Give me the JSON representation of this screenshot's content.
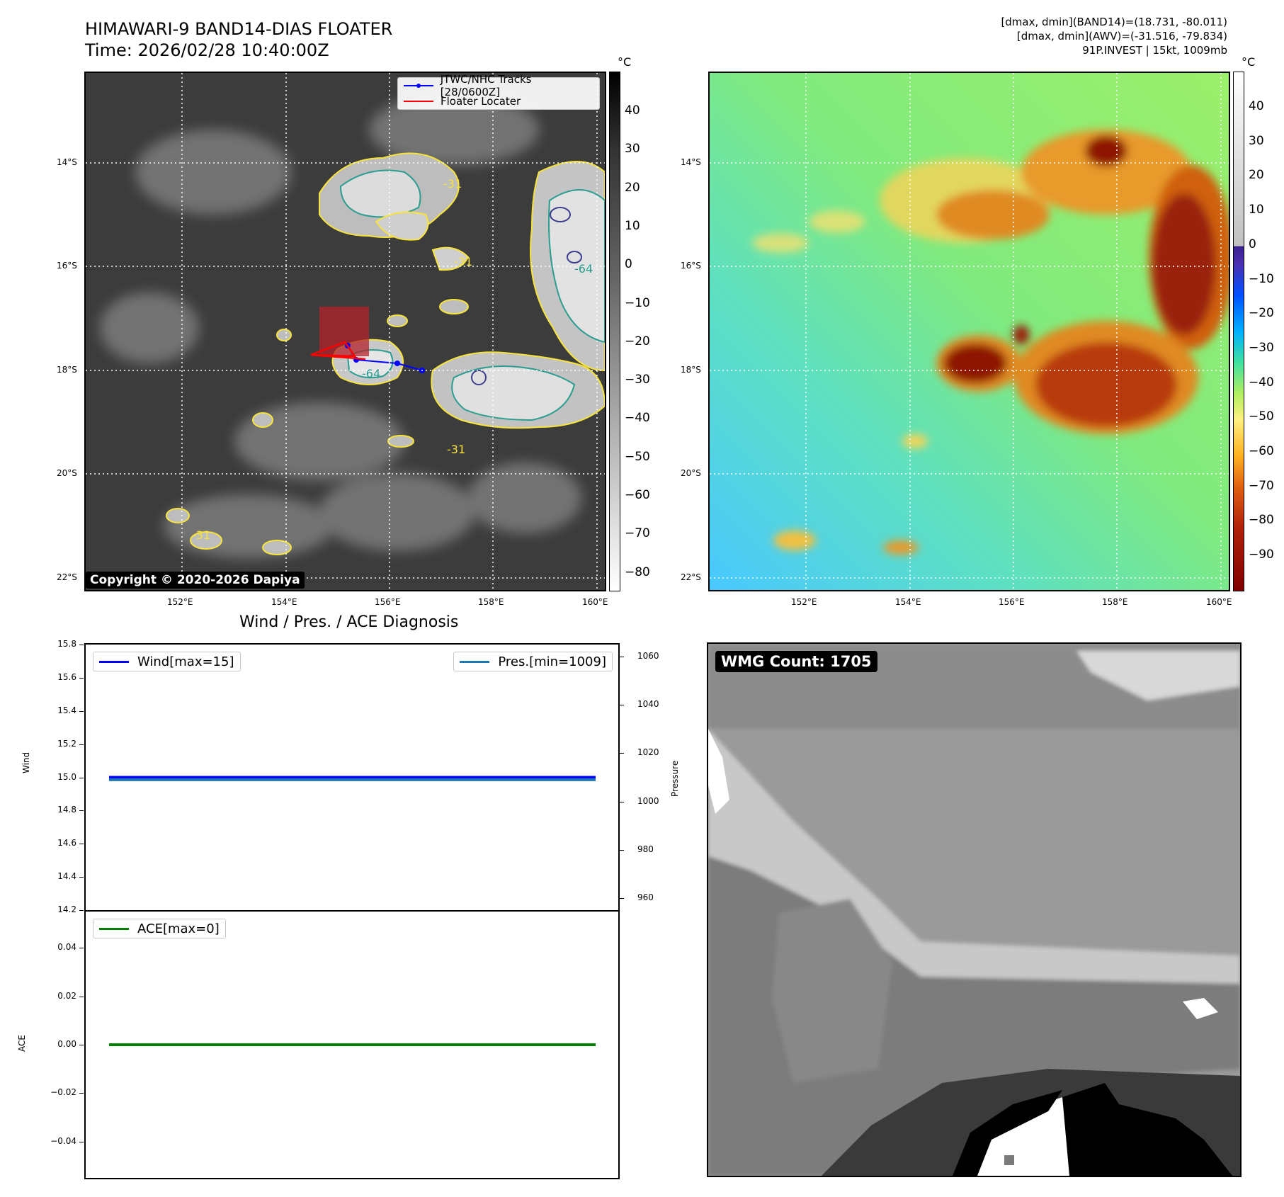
{
  "header": {
    "title_line1": "HIMAWARI-9 BAND14-DIAS FLOATER",
    "title_line2": "Time: 2026/02/28 10:40:00Z",
    "info_line1": "[dmax, dmin](BAND14)=(18.731, -80.011)",
    "info_line2": "[dmax, dmin](AWV)=(-31.516, -79.834)",
    "info_line3": "91P.INVEST | 15kt, 1009mb"
  },
  "map": {
    "lat_labels": [
      "14°S",
      "16°S",
      "18°S",
      "20°S",
      "22°S"
    ],
    "lon_labels": [
      "152°E",
      "154°E",
      "156°E",
      "158°E",
      "160°E"
    ],
    "legend_tracks": "JTWC/NHC Tracks [28/0600Z]",
    "legend_floater": "Floater Locater",
    "contour_labels": [
      "-31",
      "-31",
      "-64",
      "-31",
      "-31",
      "-64"
    ],
    "copyright": "Copyright © 2020-2026 Dapiya",
    "track_color": "#0000ff",
    "floater_color": "#ff0000"
  },
  "colorbar_gray": {
    "unit": "°C",
    "ticks": [
      "40",
      "30",
      "20",
      "10",
      "0",
      "−10",
      "−20",
      "−30",
      "−40",
      "−50",
      "−60",
      "−70",
      "−80"
    ]
  },
  "colorbar_color": {
    "unit": "°C",
    "ticks": [
      "40",
      "30",
      "20",
      "10",
      "0",
      "−10",
      "−20",
      "−30",
      "−40",
      "−50",
      "−60",
      "−70",
      "−80",
      "−90"
    ]
  },
  "diag": {
    "title": "Wind / Pres. / ACE Diagnosis",
    "wind_ylabel": "Wind",
    "pres_ylabel": "Pressure",
    "ace_ylabel": "ACE",
    "wind_ticks": [
      "15.8",
      "15.6",
      "15.4",
      "15.2",
      "15.0",
      "14.8",
      "14.6",
      "14.4",
      "14.2"
    ],
    "pres_ticks": [
      "1060",
      "1040",
      "1020",
      "1000",
      "980",
      "960"
    ],
    "ace_ticks": [
      "0.04",
      "0.02",
      "0.00",
      "−0.02",
      "−0.04"
    ],
    "legend_wind": "Wind[max=15]",
    "legend_pres": "Pres.[min=1009]",
    "legend_ace": "ACE[max=0]",
    "wind_color": "#0000ff",
    "pres_color": "#1f77b4",
    "ace_color": "#008000"
  },
  "wmg": {
    "label": "WMG Count: 1705"
  },
  "chart_data": [
    {
      "type": "line",
      "title": "Wind / Pres. / ACE Diagnosis",
      "ylabel": "Wind",
      "ylim": [
        14.2,
        15.8
      ],
      "series": [
        {
          "name": "Wind[max=15]",
          "values": [
            15,
            15
          ]
        },
        {
          "name": "Pres.[min=1009]",
          "axis": "Pressure",
          "ylim": [
            955,
            1065
          ],
          "values": [
            1009,
            1009
          ]
        }
      ]
    },
    {
      "type": "line",
      "ylabel": "ACE",
      "ylim": [
        -0.055,
        0.055
      ],
      "series": [
        {
          "name": "ACE[max=0]",
          "values": [
            0,
            0
          ]
        }
      ]
    }
  ]
}
